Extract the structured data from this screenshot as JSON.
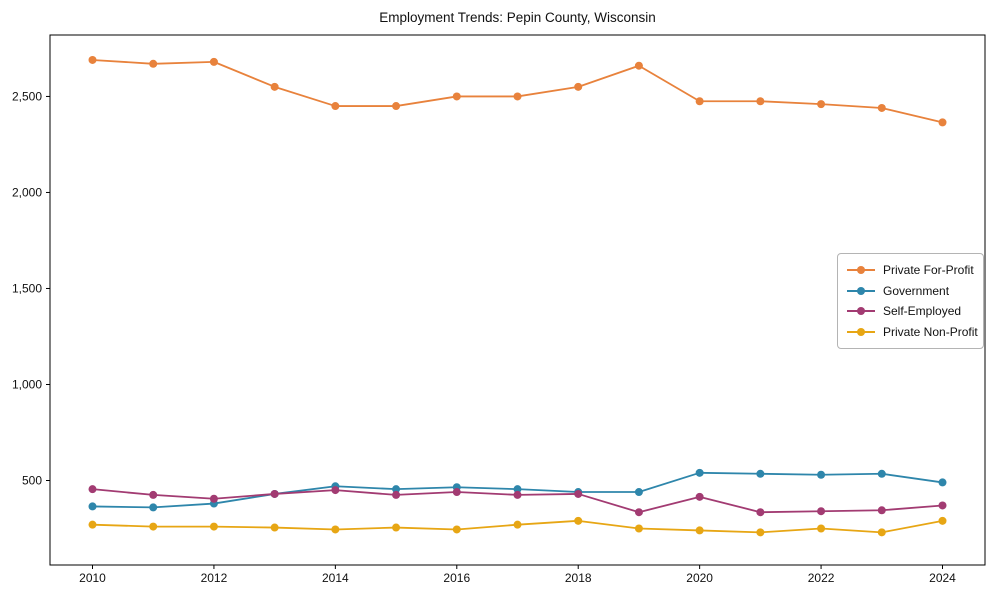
{
  "chart_data": {
    "type": "line",
    "title": "Employment Trends: Pepin County, Wisconsin",
    "xlabel": "",
    "ylabel": "",
    "x": [
      2010,
      2011,
      2012,
      2013,
      2014,
      2015,
      2016,
      2017,
      2018,
      2019,
      2020,
      2021,
      2022,
      2023,
      2024
    ],
    "series": [
      {
        "name": "Private For-Profit",
        "color": "#e8823c",
        "values": [
          2690,
          2670,
          2680,
          2550,
          2450,
          2450,
          2500,
          2500,
          2550,
          2660,
          2475,
          2475,
          2460,
          2440,
          2365
        ]
      },
      {
        "name": "Government",
        "color": "#2e86ab",
        "values": [
          365,
          360,
          380,
          430,
          470,
          455,
          465,
          455,
          440,
          440,
          540,
          535,
          530,
          535,
          490
        ]
      },
      {
        "name": "Self-Employed",
        "color": "#a23b72",
        "values": [
          455,
          425,
          405,
          430,
          450,
          425,
          440,
          425,
          430,
          335,
          415,
          335,
          340,
          345,
          370
        ]
      },
      {
        "name": "Private Non-Profit",
        "color": "#e7a614",
        "values": [
          270,
          260,
          260,
          255,
          245,
          255,
          245,
          270,
          290,
          250,
          240,
          230,
          250,
          230,
          290
        ]
      }
    ],
    "xticks": [
      2010,
      2012,
      2014,
      2016,
      2018,
      2020,
      2022,
      2024
    ],
    "xtick_labels": [
      "2010",
      "2012",
      "2014",
      "2016",
      "2018",
      "2020",
      "2022",
      "2024"
    ],
    "yticks": [
      500,
      1000,
      1500,
      2000,
      2500
    ],
    "ytick_labels": [
      "500",
      "1,000",
      "1,500",
      "2,000",
      "2,500"
    ],
    "xlim": [
      2009.3,
      2024.7
    ],
    "ylim": [
      60,
      2820
    ],
    "grid": false,
    "legend_position": "center right",
    "marker": "circle",
    "axis_color": "#000000"
  }
}
